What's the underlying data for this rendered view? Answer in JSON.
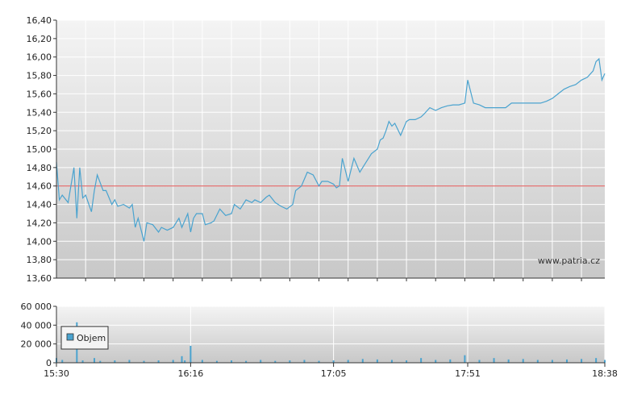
{
  "watermark": "www.patria.cz",
  "chart_data": [
    {
      "type": "line",
      "title": "",
      "xlabel": "",
      "ylabel": "",
      "ylim": [
        13.6,
        16.4
      ],
      "y_ticks": [
        "16,40",
        "16,20",
        "16,00",
        "15,80",
        "15,60",
        "15,40",
        "15,20",
        "15,00",
        "14,80",
        "14,60",
        "14,40",
        "14,20",
        "14,00",
        "13,80",
        "13,60"
      ],
      "x_range": [
        "15:30",
        "18:38"
      ],
      "x_ticks": [
        "15:30",
        "16:16",
        "17:05",
        "17:51",
        "18:38"
      ],
      "reference_line": 14.6,
      "grid": true,
      "colors": {
        "line": "#4aa3cf",
        "reference": "#e05050",
        "plot_bg_top": "#f4f4f4",
        "plot_bg_bottom": "#c8c8c8",
        "grid": "#ffffff"
      },
      "series": [
        {
          "x": [
            "15:30",
            "15:31",
            "15:32",
            "15:34",
            "15:36",
            "15:37",
            "15:38",
            "15:39",
            "15:40",
            "15:42",
            "15:43",
            "15:44",
            "15:46",
            "15:47",
            "15:49",
            "15:50",
            "15:51",
            "15:53",
            "15:55",
            "15:56",
            "15:57",
            "15:58",
            "16:00",
            "16:01",
            "16:03",
            "16:05",
            "16:06",
            "16:08",
            "16:10",
            "16:12",
            "16:13",
            "16:15",
            "16:16",
            "16:17",
            "16:18",
            "16:20",
            "16:21",
            "16:23",
            "16:24",
            "16:26",
            "16:28",
            "16:30",
            "16:31",
            "16:33",
            "16:35",
            "16:37",
            "16:38",
            "16:40",
            "16:42",
            "16:43",
            "16:45",
            "16:47",
            "16:49",
            "16:51",
            "16:52",
            "16:54",
            "16:56",
            "16:58",
            "17:00",
            "17:01",
            "17:03",
            "17:05",
            "17:06",
            "17:07",
            "17:08",
            "17:10",
            "17:12",
            "17:14",
            "17:16",
            "17:18",
            "17:20",
            "17:21",
            "17:22",
            "17:23",
            "17:24",
            "17:25",
            "17:26",
            "17:28",
            "17:30",
            "17:31",
            "17:33",
            "17:35",
            "17:36",
            "17:38",
            "17:40",
            "17:42",
            "17:44",
            "17:46",
            "17:48",
            "17:50",
            "17:51",
            "17:53",
            "17:55",
            "17:57",
            "18:00",
            "18:02",
            "18:04",
            "18:06",
            "18:08",
            "18:10",
            "18:12",
            "18:14",
            "18:16",
            "18:18",
            "18:20",
            "18:22",
            "18:24",
            "18:26",
            "18:28",
            "18:30",
            "18:32",
            "18:34",
            "18:35",
            "18:36",
            "18:37",
            "18:38"
          ],
          "values": [
            14.86,
            14.45,
            14.5,
            14.42,
            14.8,
            14.25,
            14.8,
            14.47,
            14.5,
            14.32,
            14.55,
            14.72,
            14.55,
            14.55,
            14.4,
            14.45,
            14.38,
            14.4,
            14.36,
            14.4,
            14.15,
            14.25,
            14.0,
            14.2,
            14.18,
            14.1,
            14.15,
            14.12,
            14.15,
            14.25,
            14.15,
            14.3,
            14.1,
            14.25,
            14.3,
            14.3,
            14.18,
            14.2,
            14.22,
            14.35,
            14.28,
            14.3,
            14.4,
            14.35,
            14.45,
            14.42,
            14.45,
            14.42,
            14.48,
            14.5,
            14.42,
            14.38,
            14.35,
            14.4,
            14.55,
            14.6,
            14.75,
            14.72,
            14.6,
            14.65,
            14.65,
            14.62,
            14.58,
            14.6,
            14.9,
            14.65,
            14.9,
            14.75,
            14.85,
            14.95,
            15.0,
            15.1,
            15.12,
            15.2,
            15.3,
            15.25,
            15.28,
            15.15,
            15.3,
            15.32,
            15.32,
            15.35,
            15.38,
            15.45,
            15.42,
            15.45,
            15.47,
            15.48,
            15.48,
            15.5,
            15.75,
            15.5,
            15.48,
            15.45,
            15.45,
            15.45,
            15.45,
            15.5,
            15.5,
            15.5,
            15.5,
            15.5,
            15.5,
            15.52,
            15.55,
            15.6,
            15.65,
            15.68,
            15.7,
            15.75,
            15.78,
            15.85,
            15.95,
            15.98,
            15.75,
            15.82
          ]
        }
      ]
    },
    {
      "type": "bar",
      "title": "",
      "ylim": [
        0,
        60000
      ],
      "y_ticks": [
        "60 000",
        "40 000",
        "20 000",
        "0"
      ],
      "x_range": [
        "15:30",
        "18:38"
      ],
      "x_ticks": [
        "15:30",
        "16:16",
        "17:05",
        "17:51",
        "18:38"
      ],
      "legend": {
        "label": "Objem",
        "position": "top-left"
      },
      "colors": {
        "bar": "#4aa3cf",
        "plot_bg_top": "#f4f4f4",
        "plot_bg_bottom": "#c8c8c8",
        "grid": "#ffffff"
      },
      "series": [
        {
          "name": "Objem",
          "x": [
            "15:30",
            "15:32",
            "15:37",
            "15:39",
            "15:43",
            "15:45",
            "15:50",
            "15:55",
            "16:00",
            "16:05",
            "16:10",
            "16:13",
            "16:14",
            "16:16",
            "16:20",
            "16:25",
            "16:30",
            "16:35",
            "16:40",
            "16:45",
            "16:50",
            "16:55",
            "17:00",
            "17:05",
            "17:10",
            "17:15",
            "17:20",
            "17:25",
            "17:30",
            "17:35",
            "17:40",
            "17:45",
            "17:50",
            "17:55",
            "18:00",
            "18:05",
            "18:10",
            "18:15",
            "18:20",
            "18:25",
            "18:30",
            "18:35",
            "18:38"
          ],
          "values": [
            5000,
            3000,
            43000,
            2500,
            5000,
            2000,
            2500,
            3000,
            2000,
            2500,
            3000,
            7000,
            2500,
            18000,
            3000,
            2000,
            2500,
            2000,
            3000,
            2000,
            2500,
            3000,
            2000,
            2500,
            3000,
            4000,
            3500,
            3000,
            2500,
            5000,
            3000,
            3500,
            8000,
            3000,
            5000,
            3500,
            4000,
            3000,
            3000,
            3500,
            4000,
            5000,
            3000
          ]
        }
      ]
    }
  ]
}
